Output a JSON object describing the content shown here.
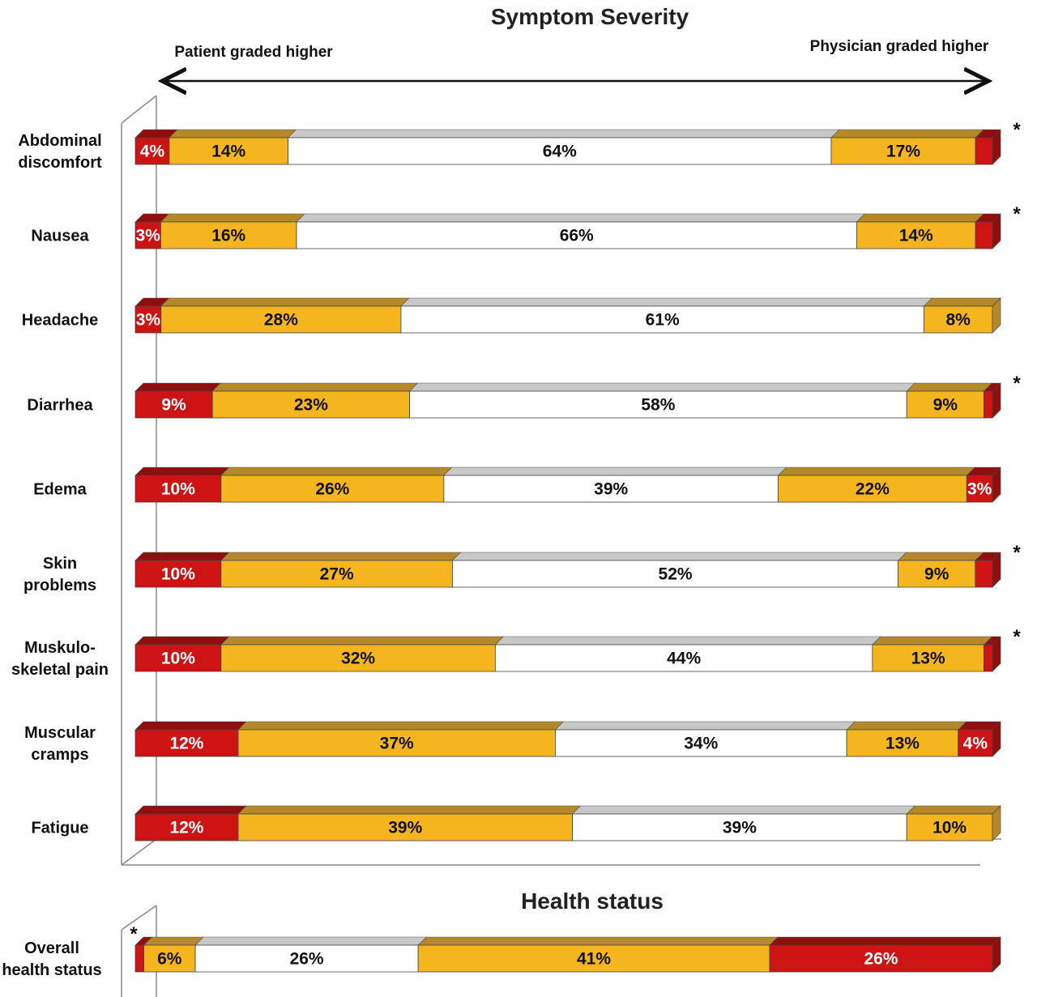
{
  "colors": {
    "dark_red": "#cc1414",
    "orange": "#f5b51e",
    "white": "#ffffff",
    "top_face_red": "#8f0f0f",
    "top_face_orange": "#b5892a",
    "top_face_white": "#c8c8c8",
    "side_face": "#8a6a1e"
  },
  "chart_data": [
    {
      "type": "bar",
      "stacked": true,
      "orientation": "horizontal",
      "title": "Symptom Severity",
      "left_label": "Patient graded higher",
      "right_label": "Physician graded higher",
      "segment_order": [
        "patient_much_higher",
        "patient_higher",
        "agreement",
        "physician_higher",
        "physician_much_higher"
      ],
      "segment_colors": [
        "dark_red",
        "orange",
        "white",
        "orange",
        "dark_red"
      ],
      "categories": [
        {
          "label": [
            "Abdominal",
            "discomfort"
          ],
          "values": [
            4,
            14,
            64,
            17,
            2
          ],
          "labels": [
            "4%",
            "14%",
            "64%",
            "17%",
            ""
          ],
          "significant": true
        },
        {
          "label": [
            "Nausea"
          ],
          "values": [
            3,
            16,
            66,
            14,
            2
          ],
          "labels": [
            "3%",
            "16%",
            "66%",
            "14%",
            ""
          ],
          "significant": true
        },
        {
          "label": [
            "Headache"
          ],
          "values": [
            3,
            28,
            61,
            8,
            0
          ],
          "labels": [
            "3%",
            "28%",
            "61%",
            "8%",
            ""
          ],
          "significant": false
        },
        {
          "label": [
            "Diarrhea"
          ],
          "values": [
            9,
            23,
            58,
            9,
            1
          ],
          "labels": [
            "9%",
            "23%",
            "58%",
            "9%",
            ""
          ],
          "significant": true
        },
        {
          "label": [
            "Edema"
          ],
          "values": [
            10,
            26,
            39,
            22,
            3
          ],
          "labels": [
            "10%",
            "26%",
            "39%",
            "22%",
            "3%"
          ],
          "significant": false
        },
        {
          "label": [
            "Skin",
            "problems"
          ],
          "values": [
            10,
            27,
            52,
            9,
            2
          ],
          "labels": [
            "10%",
            "27%",
            "52%",
            "9%",
            ""
          ],
          "significant": true
        },
        {
          "label": [
            "Muskulo-",
            "skeletal pain"
          ],
          "values": [
            10,
            32,
            44,
            13,
            1
          ],
          "labels": [
            "10%",
            "32%",
            "44%",
            "13%",
            ""
          ],
          "significant": true
        },
        {
          "label": [
            "Muscular",
            "cramps"
          ],
          "values": [
            12,
            37,
            34,
            13,
            4
          ],
          "labels": [
            "12%",
            "37%",
            "34%",
            "13%",
            "4%"
          ],
          "significant": false
        },
        {
          "label": [
            "Fatigue"
          ],
          "values": [
            12,
            39,
            39,
            10,
            0
          ],
          "labels": [
            "12%",
            "39%",
            "39%",
            "10%",
            ""
          ],
          "significant": false
        }
      ]
    },
    {
      "type": "bar",
      "stacked": true,
      "orientation": "horizontal",
      "title": "Health status",
      "segment_colors": [
        "dark_red",
        "orange",
        "white",
        "orange",
        "dark_red"
      ],
      "categories": [
        {
          "label": [
            "Overall",
            "health status"
          ],
          "values": [
            1,
            6,
            26,
            41,
            26
          ],
          "labels": [
            "",
            "6%",
            "26%",
            "41%",
            "26%"
          ],
          "significant": true,
          "star_side": "left"
        }
      ]
    }
  ]
}
